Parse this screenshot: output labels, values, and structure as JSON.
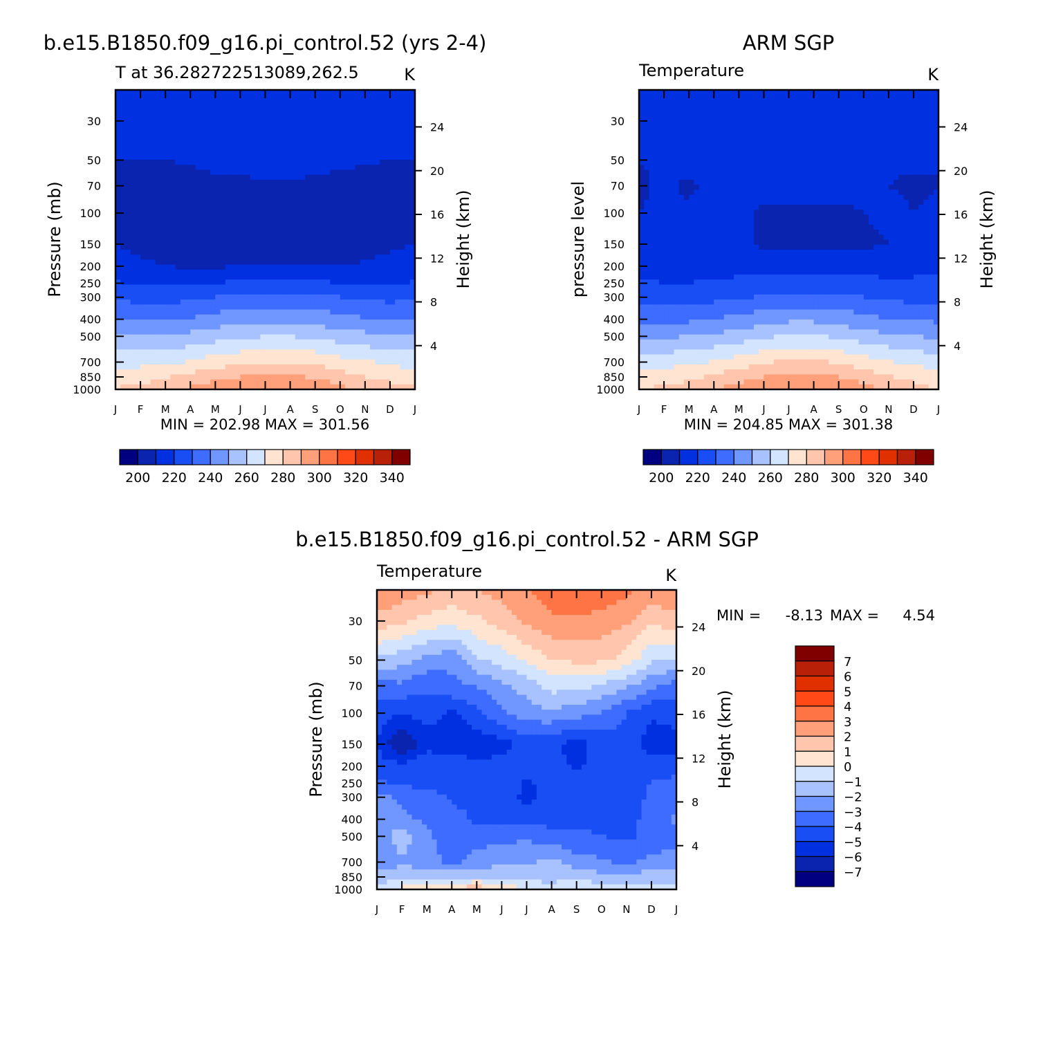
{
  "colors": {
    "abs_scale": [
      "#000080",
      "#0b24b0",
      "#0030e0",
      "#1a4ef5",
      "#3d6cff",
      "#7096ff",
      "#a8c2ff",
      "#d2e4ff",
      "#ffe4d2",
      "#ffc6ad",
      "#ffa07a",
      "#ff7445",
      "#ff4a18",
      "#e03000",
      "#b82008",
      "#800000"
    ],
    "diff_scale": [
      "#000080",
      "#0b24b0",
      "#0030e0",
      "#1a4ef5",
      "#3d6cff",
      "#7096ff",
      "#a8c2ff",
      "#d2e4ff",
      "#ffe4d2",
      "#ffc6ad",
      "#ffa07a",
      "#ff7445",
      "#ff4a18",
      "#e03000",
      "#b82008",
      "#800000"
    ]
  },
  "panels": {
    "model": {
      "title": "b.e15.B1850.f09_g16.pi_control.52 (yrs 2-4)",
      "subtitle_left": "T at 36.282722513089,262.5",
      "subtitle_right": "K",
      "ylabel": "Pressure (mb)",
      "ylabel_right": "Height (km)",
      "minmax": "MIN = 202.98 MAX = 301.56"
    },
    "obs": {
      "title": "ARM SGP",
      "subtitle_left": "Temperature",
      "subtitle_right": "K",
      "ylabel": "pressure level",
      "ylabel_right": "Height (km)",
      "minmax": "MIN = 204.85 MAX = 301.38"
    },
    "diff": {
      "title": "b.e15.B1850.f09_g16.pi_control.52 - ARM SGP",
      "subtitle_left": "Temperature",
      "subtitle_right": "K",
      "ylabel": "Pressure (mb)",
      "ylabel_right": "Height (km)",
      "min_label": "MIN =",
      "min_value": "-8.13",
      "max_label": "MAX =",
      "max_value": "4.54"
    }
  },
  "chart_data": [
    {
      "type": "heatmap",
      "name": "model",
      "x": [
        "J",
        "F",
        "M",
        "A",
        "M",
        "J",
        "J",
        "A",
        "S",
        "O",
        "N",
        "D",
        "J"
      ],
      "pressure_ticks": [
        30,
        50,
        70,
        100,
        150,
        200,
        250,
        300,
        400,
        500,
        700,
        850,
        1000
      ],
      "height_ticks": [
        4,
        8,
        12,
        16,
        20,
        24
      ],
      "yrange": [
        20,
        1000
      ],
      "levels": [
        200,
        210,
        220,
        230,
        240,
        250,
        260,
        270,
        280,
        290,
        300,
        310,
        320,
        330,
        340
      ],
      "colorbar_labels": [
        "200",
        "220",
        "240",
        "260",
        "280",
        "300",
        "320",
        "340"
      ],
      "rows_pressure": [
        20,
        30,
        50,
        70,
        100,
        150,
        200,
        250,
        300,
        400,
        500,
        700,
        850,
        1000
      ],
      "values": [
        [
          216,
          216,
          216,
          217,
          218,
          219,
          220,
          220,
          219,
          218,
          216,
          216,
          216
        ],
        [
          214,
          214,
          214,
          215,
          216,
          217,
          218,
          218,
          217,
          216,
          214,
          214,
          214
        ],
        [
          210,
          210,
          210,
          211,
          212,
          213,
          214,
          214,
          213,
          212,
          211,
          210,
          210
        ],
        [
          206,
          206,
          206,
          207,
          208,
          208,
          209,
          209,
          208,
          207,
          206,
          206,
          206
        ],
        [
          205,
          205,
          205,
          205,
          205,
          205,
          206,
          206,
          206,
          205,
          205,
          205,
          205
        ],
        [
          210,
          207,
          206,
          205,
          205,
          205,
          205,
          205,
          205,
          206,
          207,
          208,
          210
        ],
        [
          215,
          212,
          210,
          209,
          209,
          210,
          211,
          211,
          210,
          210,
          211,
          213,
          215
        ],
        [
          221,
          219,
          218,
          219,
          220,
          222,
          223,
          223,
          222,
          220,
          219,
          219,
          221
        ],
        [
          228,
          227,
          226,
          228,
          230,
          232,
          233,
          233,
          232,
          230,
          228,
          227,
          228
        ],
        [
          240,
          239,
          239,
          241,
          244,
          246,
          248,
          248,
          246,
          243,
          241,
          240,
          240
        ],
        [
          251,
          250,
          251,
          253,
          256,
          258,
          260,
          260,
          258,
          255,
          253,
          252,
          251
        ],
        [
          266,
          267,
          268,
          271,
          275,
          278,
          280,
          280,
          278,
          274,
          271,
          268,
          266
        ],
        [
          275,
          276,
          279,
          283,
          287,
          290,
          292,
          292,
          289,
          285,
          280,
          277,
          275
        ],
        [
          281,
          283,
          286,
          292,
          297,
          300,
          301,
          301,
          298,
          293,
          288,
          284,
          281
        ]
      ]
    },
    {
      "type": "heatmap",
      "name": "obs",
      "x": [
        "J",
        "F",
        "M",
        "A",
        "M",
        "J",
        "J",
        "A",
        "S",
        "O",
        "N",
        "D",
        "J"
      ],
      "pressure_ticks": [
        30,
        50,
        70,
        100,
        150,
        200,
        250,
        300,
        400,
        500,
        700,
        850,
        1000
      ],
      "height_ticks": [
        4,
        8,
        12,
        16,
        20,
        24
      ],
      "yrange": [
        20,
        1000
      ],
      "levels": [
        200,
        210,
        220,
        230,
        240,
        250,
        260,
        270,
        280,
        290,
        300,
        310,
        320,
        330,
        340
      ],
      "colorbar_labels": [
        "200",
        "220",
        "240",
        "260",
        "280",
        "300",
        "320",
        "340"
      ],
      "rows_pressure": [
        20,
        30,
        50,
        70,
        100,
        150,
        200,
        250,
        300,
        400,
        500,
        700,
        850,
        1000
      ],
      "values": [
        [
          214,
          214,
          214,
          215,
          216,
          217,
          218,
          218,
          217,
          216,
          214,
          214,
          214
        ],
        [
          213,
          213,
          213,
          213,
          214,
          215,
          215,
          215,
          215,
          214,
          213,
          213,
          213
        ],
        [
          210,
          211,
          212,
          212,
          212,
          212,
          213,
          213,
          212,
          212,
          211,
          211,
          210
        ],
        [
          209,
          211,
          209,
          212,
          212,
          212,
          212,
          212,
          212,
          211,
          210,
          209,
          210
        ],
        [
          210,
          211,
          211,
          212,
          211,
          209,
          209,
          209,
          209,
          210,
          212,
          210,
          211
        ],
        [
          213,
          213,
          214,
          213,
          212,
          208,
          207,
          207,
          207,
          208,
          210,
          212,
          213
        ],
        [
          218,
          217,
          217,
          217,
          217,
          217,
          216,
          216,
          216,
          217,
          218,
          218,
          219
        ],
        [
          221,
          220,
          220,
          221,
          222,
          223,
          224,
          224,
          223,
          222,
          221,
          221,
          222
        ],
        [
          227,
          226,
          226,
          227,
          229,
          231,
          233,
          233,
          232,
          230,
          228,
          227,
          227
        ],
        [
          238,
          238,
          238,
          240,
          243,
          246,
          248,
          248,
          246,
          243,
          240,
          239,
          238
        ],
        [
          249,
          249,
          250,
          252,
          255,
          258,
          261,
          261,
          258,
          255,
          252,
          250,
          249
        ],
        [
          265,
          266,
          268,
          271,
          275,
          279,
          282,
          282,
          279,
          275,
          271,
          268,
          265
        ],
        [
          274,
          275,
          278,
          282,
          286,
          290,
          293,
          293,
          290,
          286,
          281,
          277,
          274
        ],
        [
          280,
          282,
          285,
          290,
          295,
          299,
          301,
          301,
          299,
          294,
          289,
          284,
          280
        ]
      ]
    },
    {
      "type": "heatmap",
      "name": "diff",
      "x": [
        "J",
        "F",
        "M",
        "A",
        "M",
        "J",
        "J",
        "A",
        "S",
        "O",
        "N",
        "D",
        "J"
      ],
      "pressure_ticks": [
        30,
        50,
        70,
        100,
        150,
        200,
        250,
        300,
        400,
        500,
        700,
        850,
        1000
      ],
      "height_ticks": [
        4,
        8,
        12,
        16,
        20,
        24
      ],
      "yrange": [
        20,
        1000
      ],
      "levels": [
        -7,
        -6,
        -5,
        -4,
        -3,
        -2,
        -1,
        0,
        1,
        2,
        3,
        4,
        5,
        6,
        7
      ],
      "colorbar_labels": [
        "-7",
        "-6",
        "-5",
        "-4",
        "-3",
        "-2",
        "-1",
        "0",
        "1",
        "2",
        "3",
        "4",
        "5",
        "6",
        "7"
      ],
      "rows_pressure": [
        20,
        30,
        50,
        70,
        100,
        150,
        200,
        250,
        300,
        400,
        500,
        700,
        850,
        1000
      ],
      "values": [
        [
          3.0,
          2.6,
          2.2,
          1.6,
          2.0,
          2.4,
          3.0,
          3.5,
          4.0,
          3.8,
          3.2,
          2.6,
          3.0
        ],
        [
          1.6,
          1.2,
          0.6,
          0.4,
          0.8,
          1.4,
          2.2,
          2.8,
          2.8,
          2.6,
          2.2,
          1.2,
          1.6
        ],
        [
          -1.2,
          -1.6,
          -2.4,
          -2.8,
          -1.2,
          -0.6,
          0.2,
          1.0,
          1.2,
          1.2,
          0.6,
          -0.8,
          -1.2
        ],
        [
          -3.4,
          -3.2,
          -3.8,
          -3.2,
          -3.0,
          -2.2,
          -1.6,
          -0.6,
          -0.6,
          -1.2,
          -1.8,
          -2.8,
          -3.4
        ],
        [
          -4.6,
          -5.0,
          -4.6,
          -5.2,
          -4.2,
          -3.2,
          -2.4,
          -2.2,
          -2.6,
          -3.0,
          -4.0,
          -4.8,
          -4.6
        ],
        [
          -5.0,
          -7.2,
          -5.4,
          -5.8,
          -5.8,
          -5.4,
          -4.6,
          -4.8,
          -5.4,
          -4.6,
          -4.4,
          -5.6,
          -5.4
        ],
        [
          -4.6,
          -4.6,
          -4.2,
          -4.2,
          -4.6,
          -4.6,
          -4.6,
          -4.6,
          -5.2,
          -4.6,
          -4.2,
          -4.4,
          -4.6
        ],
        [
          -3.8,
          -4.2,
          -4.4,
          -4.6,
          -4.2,
          -4.0,
          -5.2,
          -4.6,
          -4.4,
          -4.6,
          -4.4,
          -4.0,
          -3.6
        ],
        [
          -2.6,
          -3.2,
          -3.4,
          -4.2,
          -4.2,
          -4.2,
          -5.4,
          -4.4,
          -4.2,
          -4.6,
          -4.6,
          -3.8,
          -3.2
        ],
        [
          -2.4,
          -2.8,
          -3.2,
          -3.6,
          -4.2,
          -4.2,
          -4.4,
          -4.4,
          -4.2,
          -4.2,
          -4.4,
          -3.6,
          -2.8
        ],
        [
          -2.6,
          -1.4,
          -2.8,
          -3.6,
          -3.4,
          -3.2,
          -3.2,
          -3.6,
          -3.8,
          -4.0,
          -4.2,
          -3.8,
          -3.4
        ],
        [
          -2.8,
          -2.2,
          -2.6,
          -3.2,
          -2.6,
          -2.4,
          -2.2,
          -1.6,
          -2.6,
          -2.8,
          -3.2,
          -2.6,
          -2.6
        ],
        [
          -1.6,
          -1.2,
          -1.4,
          -1.2,
          -1.0,
          -1.0,
          -1.2,
          -1.4,
          -1.2,
          -1.8,
          -1.8,
          -1.4,
          -1.4
        ],
        [
          -0.6,
          0.4,
          1.2,
          1.4,
          1.6,
          1.0,
          -0.4,
          -0.6,
          0.2,
          -0.2,
          0.2,
          -0.4,
          -0.6
        ]
      ]
    }
  ]
}
